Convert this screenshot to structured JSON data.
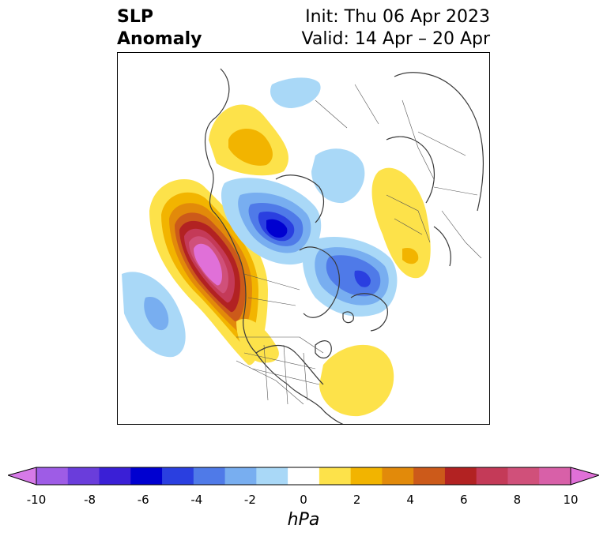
{
  "title": {
    "left_line1": "SLP",
    "left_line2": "Anomaly",
    "right_line1": "Init: Thu 06 Apr 2023",
    "right_line2": "Valid: 14 Apr – 20 Apr"
  },
  "colorbar": {
    "units": "hPa",
    "min": -10,
    "max": 10,
    "ticks": [
      "-10",
      "-8",
      "-6",
      "-4",
      "-2",
      "0",
      "2",
      "4",
      "6",
      "8",
      "10"
    ],
    "colors": [
      "#d77ae8",
      "#9e5ce6",
      "#6a3ddb",
      "#3a1fd6",
      "#0000d0",
      "#2a3fe0",
      "#4f7ae8",
      "#78aef0",
      "#a9d8f7",
      "#ffffff",
      "#fde24a",
      "#f2b400",
      "#e28a0a",
      "#cc5a1a",
      "#b22222",
      "#c43a58",
      "#d0507a",
      "#d860a8",
      "#e070d8"
    ],
    "extend": "both"
  },
  "map": {
    "projection": "north-polar-stereographic",
    "field": "sea-level-pressure-anomaly"
  }
}
